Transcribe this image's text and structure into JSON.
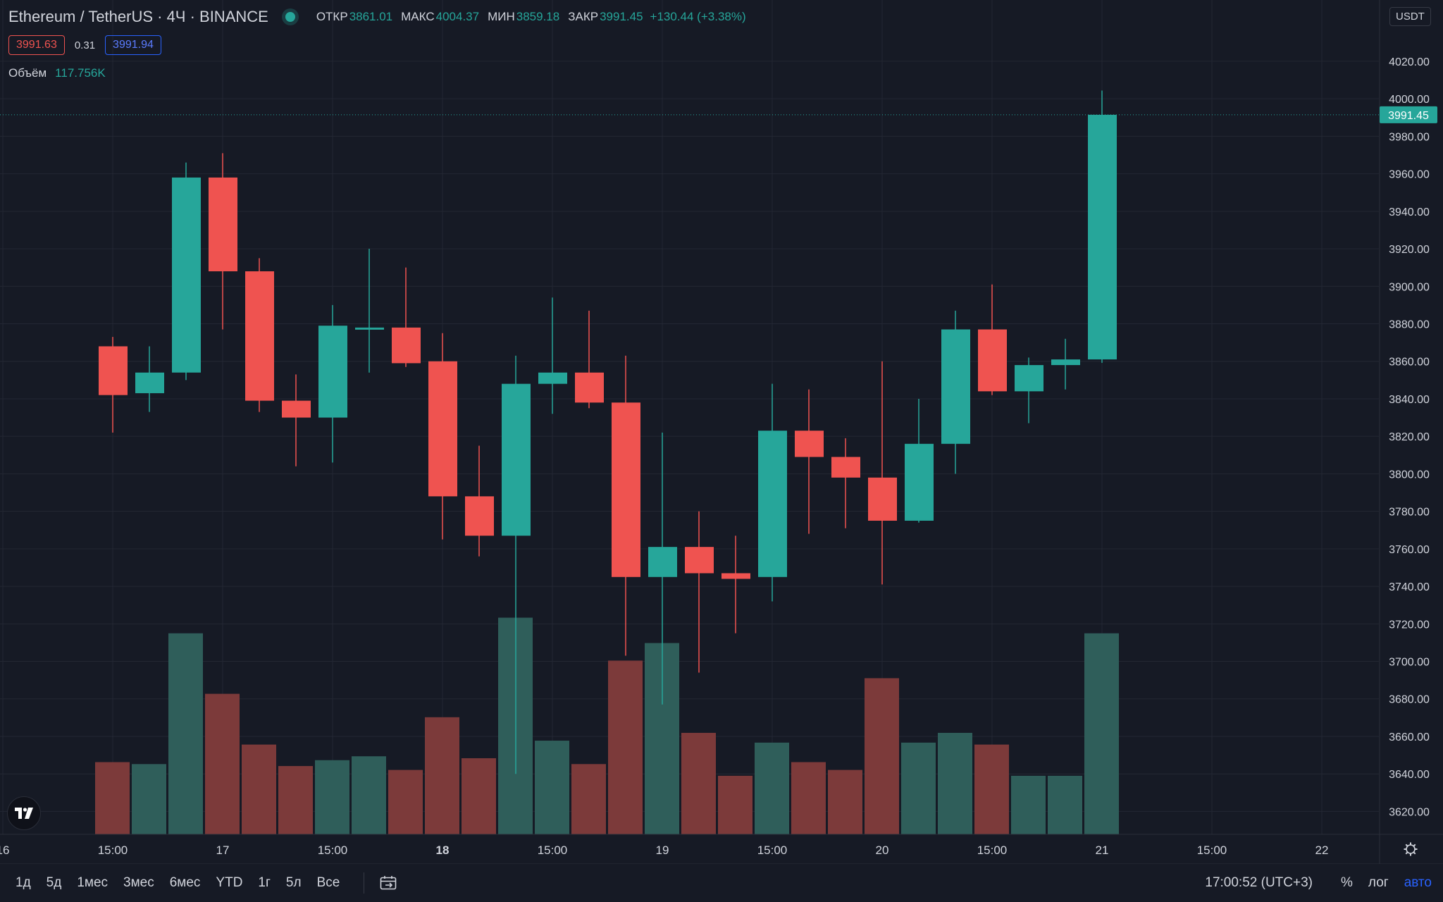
{
  "header": {
    "symbol": "Ethereum / TetherUS · 4Ч · BINANCE",
    "open_label": "ОТКР",
    "open": "3861.01",
    "high_label": "МАКС",
    "high": "4004.37",
    "low_label": "МИН",
    "low": "3859.18",
    "close_label": "ЗАКР",
    "close": "3991.45",
    "change": "+130.44 (+3.38%)",
    "bid": "3991.63",
    "spread": "0.31",
    "ask": "3991.94",
    "volume_label": "Объём",
    "volume_value": "117.756K",
    "currency": "USDT",
    "last_price_tag": "3991.45"
  },
  "bottom_bar": {
    "ranges": [
      "1д",
      "5д",
      "1мес",
      "3мес",
      "6мес",
      "YTD",
      "1г",
      "5л",
      "Все"
    ],
    "clock": "17:00:52 (UTC+3)",
    "percent": "%",
    "log": "лог",
    "auto": "авто"
  },
  "colors": {
    "up": "#26a69a",
    "down": "#ef5350",
    "background": "#161a25",
    "grid": "#232733",
    "accent": "#2962ff"
  },
  "chart_data": {
    "type": "candlestick",
    "title": "Ethereum / TetherUS · 4Ч · BINANCE",
    "ylim": [
      3604,
      4032
    ],
    "y_ticks": [
      3620,
      3640,
      3660,
      3680,
      3700,
      3720,
      3740,
      3760,
      3780,
      3800,
      3820,
      3840,
      3860,
      3880,
      3900,
      3920,
      3940,
      3960,
      3980,
      4000,
      4020
    ],
    "x_ticks": [
      "16",
      "15:00",
      "17",
      "15:00",
      "18",
      "15:00",
      "19",
      "15:00",
      "20",
      "15:00",
      "21",
      "15:00",
      "22"
    ],
    "x_tick_index": [
      -3,
      0,
      3,
      6,
      9,
      12,
      15,
      18,
      21,
      24,
      27,
      30,
      33
    ],
    "bold_ticks": [
      "18"
    ],
    "grid": true,
    "candles": [
      {
        "o": 3868,
        "h": 3873,
        "l": 3822,
        "c": 3842
      },
      {
        "o": 3843,
        "h": 3868,
        "l": 3833,
        "c": 3854
      },
      {
        "o": 3854,
        "h": 3966,
        "l": 3850,
        "c": 3958
      },
      {
        "o": 3958,
        "h": 3971,
        "l": 3877,
        "c": 3908
      },
      {
        "o": 3908,
        "h": 3915,
        "l": 3833,
        "c": 3839
      },
      {
        "o": 3839,
        "h": 3853,
        "l": 3804,
        "c": 3830
      },
      {
        "o": 3830,
        "h": 3890,
        "l": 3806,
        "c": 3879
      },
      {
        "o": 3878,
        "h": 3920,
        "l": 3854,
        "c": 3878
      },
      {
        "o": 3878,
        "h": 3910,
        "l": 3857,
        "c": 3859
      },
      {
        "o": 3860,
        "h": 3875,
        "l": 3765,
        "c": 3788
      },
      {
        "o": 3788,
        "h": 3815,
        "l": 3756,
        "c": 3767
      },
      {
        "o": 3767,
        "h": 3863,
        "l": 3640,
        "c": 3848
      },
      {
        "o": 3848,
        "h": 3894,
        "l": 3832,
        "c": 3854
      },
      {
        "o": 3854,
        "h": 3887,
        "l": 3835,
        "c": 3838
      },
      {
        "o": 3838,
        "h": 3863,
        "l": 3703,
        "c": 3745
      },
      {
        "o": 3745,
        "h": 3822,
        "l": 3677,
        "c": 3761
      },
      {
        "o": 3761,
        "h": 3780,
        "l": 3694,
        "c": 3747
      },
      {
        "o": 3747,
        "h": 3767,
        "l": 3715,
        "c": 3744
      },
      {
        "o": 3745,
        "h": 3848,
        "l": 3732,
        "c": 3823
      },
      {
        "o": 3823,
        "h": 3845,
        "l": 3768,
        "c": 3809
      },
      {
        "o": 3809,
        "h": 3819,
        "l": 3771,
        "c": 3798
      },
      {
        "o": 3798,
        "h": 3860,
        "l": 3741,
        "c": 3775
      },
      {
        "o": 3775,
        "h": 3840,
        "l": 3774,
        "c": 3816
      },
      {
        "o": 3816,
        "h": 3887,
        "l": 3800,
        "c": 3877
      },
      {
        "o": 3877,
        "h": 3901,
        "l": 3842,
        "c": 3844
      },
      {
        "o": 3844,
        "h": 3862,
        "l": 3827,
        "c": 3858
      },
      {
        "o": 3858,
        "h": 3872,
        "l": 3845,
        "c": 3861
      },
      {
        "o": 3861.01,
        "h": 4004.37,
        "l": 3859.18,
        "c": 3991.45
      }
    ],
    "volumes": [
      37,
      36,
      103,
      72,
      46,
      35,
      38,
      40,
      33,
      60,
      39,
      111,
      48,
      36,
      89,
      98,
      52,
      30,
      47,
      37,
      33,
      80,
      47,
      52,
      46,
      30,
      30,
      103
    ],
    "volume_scale_max": 200,
    "last_price": 3991.45
  }
}
